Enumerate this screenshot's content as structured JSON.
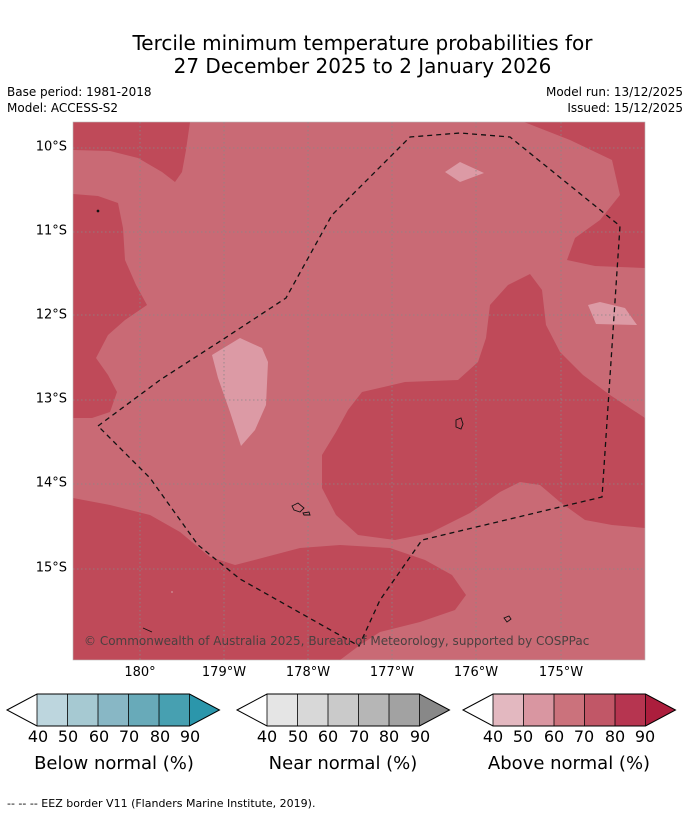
{
  "title_line1": "Tercile minimum temperature probabilities for",
  "title_line2": "27 December 2025 to 2 January 2026",
  "base_period": "Base period: 1981-2018",
  "model": "Model: ACCESS-S2",
  "model_run": "Model run: 13/12/2025",
  "issued": "Issued: 15/12/2025",
  "lat_labels": [
    "10°S",
    "11°S",
    "12°S",
    "13°S",
    "14°S",
    "15°S"
  ],
  "lon_labels": [
    "180°",
    "179°W",
    "178°W",
    "177°W",
    "176°W",
    "175°W"
  ],
  "copyright": "© Commonwealth of Australia 2025, Bureau of Meteorology, supported by COSPPac",
  "colorbars": [
    {
      "label": "Below normal (%)",
      "ticks": [
        "40",
        "50",
        "60",
        "70",
        "80",
        "90"
      ],
      "colors": [
        "#ffffff",
        "#bdd6de",
        "#a6c9d2",
        "#88b7c5",
        "#68aab9",
        "#47a0b1",
        "#2b96ab"
      ]
    },
    {
      "label": "Near normal (%)",
      "ticks": [
        "40",
        "50",
        "60",
        "70",
        "80",
        "90"
      ],
      "colors": [
        "#ffffff",
        "#e5e5e5",
        "#d8d8d8",
        "#cacaca",
        "#b6b6b6",
        "#a2a2a2",
        "#888888"
      ]
    },
    {
      "label": "Above normal (%)",
      "ticks": [
        "40",
        "50",
        "60",
        "70",
        "80",
        "90"
      ],
      "colors": [
        "#ffffff",
        "#e3b8c0",
        "#d996a1",
        "#cb727c",
        "#c15767",
        "#b63550",
        "#ac1e3d"
      ]
    }
  ],
  "footnote": "--  --  -- EEZ border V11 (Flanders Marine Institute, 2019)."
}
